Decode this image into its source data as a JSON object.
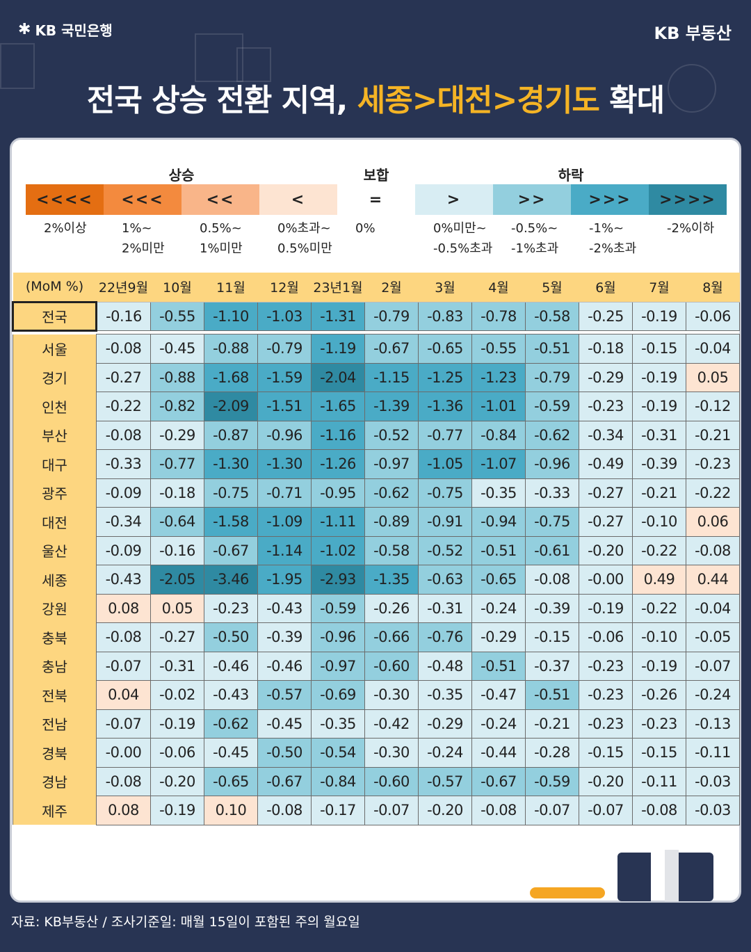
{
  "brand": {
    "left_logo": "KB 국민은행",
    "right_logo": "KB 부동산"
  },
  "title": {
    "part1": "전국 상승 전환 지역, ",
    "highlight": "세종>대전>경기도",
    "part2": " 확대"
  },
  "legend": {
    "group_up": "상승",
    "group_flat": "보합",
    "group_down": "하락",
    "items": [
      {
        "symbol": "<<<<",
        "desc": "2%이상",
        "color": "#e46e12"
      },
      {
        "symbol": "<<<",
        "desc": "1%~\n2%미만",
        "color": "#f38a3e"
      },
      {
        "symbol": "<<",
        "desc": "0.5%~\n1%미만",
        "color": "#f9b589"
      },
      {
        "symbol": "<",
        "desc": "0%초과~\n0.5%미만",
        "color": "#fde4d2"
      },
      {
        "symbol": "=",
        "desc": "0%",
        "color": "#ffffff"
      },
      {
        "symbol": ">",
        "desc": "0%미만~\n-0.5%초과",
        "color": "#d8edf3"
      },
      {
        "symbol": ">>",
        "desc": "-0.5%~\n-1%초과",
        "color": "#93cfde"
      },
      {
        "symbol": ">>>",
        "desc": "-1%~\n-2%초과",
        "color": "#4aabc6"
      },
      {
        "symbol": ">>>>",
        "desc": "-2%이하",
        "color": "#2f8aa2"
      }
    ]
  },
  "table": {
    "corner": "(MoM %)",
    "columns": [
      "22년9월",
      "10월",
      "11월",
      "12월",
      "23년1월",
      "2월",
      "3월",
      "4월",
      "5월",
      "6월",
      "7월",
      "8월"
    ],
    "rows": [
      {
        "region": "전국",
        "values": [
          "-0.16",
          "-0.55",
          "-1.10",
          "-1.03",
          "-1.31",
          "-0.79",
          "-0.83",
          "-0.78",
          "-0.58",
          "-0.25",
          "-0.19",
          "-0.06"
        ]
      },
      {
        "region": "서울",
        "values": [
          "-0.08",
          "-0.45",
          "-0.88",
          "-0.79",
          "-1.19",
          "-0.67",
          "-0.65",
          "-0.55",
          "-0.51",
          "-0.18",
          "-0.15",
          "-0.04"
        ]
      },
      {
        "region": "경기",
        "values": [
          "-0.27",
          "-0.88",
          "-1.68",
          "-1.59",
          "-2.04",
          "-1.15",
          "-1.25",
          "-1.23",
          "-0.79",
          "-0.29",
          "-0.19",
          "0.05"
        ]
      },
      {
        "region": "인천",
        "values": [
          "-0.22",
          "-0.82",
          "-2.09",
          "-1.51",
          "-1.65",
          "-1.39",
          "-1.36",
          "-1.01",
          "-0.59",
          "-0.23",
          "-0.19",
          "-0.12"
        ]
      },
      {
        "region": "부산",
        "values": [
          "-0.08",
          "-0.29",
          "-0.87",
          "-0.96",
          "-1.16",
          "-0.52",
          "-0.77",
          "-0.84",
          "-0.62",
          "-0.34",
          "-0.31",
          "-0.21"
        ]
      },
      {
        "region": "대구",
        "values": [
          "-0.33",
          "-0.77",
          "-1.30",
          "-1.30",
          "-1.26",
          "-0.97",
          "-1.05",
          "-1.07",
          "-0.96",
          "-0.49",
          "-0.39",
          "-0.23"
        ]
      },
      {
        "region": "광주",
        "values": [
          "-0.09",
          "-0.18",
          "-0.75",
          "-0.71",
          "-0.95",
          "-0.62",
          "-0.75",
          "-0.35",
          "-0.33",
          "-0.27",
          "-0.21",
          "-0.22"
        ]
      },
      {
        "region": "대전",
        "values": [
          "-0.34",
          "-0.64",
          "-1.58",
          "-1.09",
          "-1.11",
          "-0.89",
          "-0.91",
          "-0.94",
          "-0.75",
          "-0.27",
          "-0.10",
          "0.06"
        ]
      },
      {
        "region": "울산",
        "values": [
          "-0.09",
          "-0.16",
          "-0.67",
          "-1.14",
          "-1.02",
          "-0.58",
          "-0.52",
          "-0.51",
          "-0.61",
          "-0.20",
          "-0.22",
          "-0.08"
        ]
      },
      {
        "region": "세종",
        "values": [
          "-0.43",
          "-2.05",
          "-3.46",
          "-1.95",
          "-2.93",
          "-1.35",
          "-0.63",
          "-0.65",
          "-0.08",
          "-0.00",
          "0.49",
          "0.44"
        ]
      },
      {
        "region": "강원",
        "values": [
          "0.08",
          "0.05",
          "-0.23",
          "-0.43",
          "-0.59",
          "-0.26",
          "-0.31",
          "-0.24",
          "-0.39",
          "-0.19",
          "-0.22",
          "-0.04"
        ]
      },
      {
        "region": "충북",
        "values": [
          "-0.08",
          "-0.27",
          "-0.50",
          "-0.39",
          "-0.96",
          "-0.66",
          "-0.76",
          "-0.29",
          "-0.15",
          "-0.06",
          "-0.10",
          "-0.05"
        ]
      },
      {
        "region": "충남",
        "values": [
          "-0.07",
          "-0.31",
          "-0.46",
          "-0.46",
          "-0.97",
          "-0.60",
          "-0.48",
          "-0.51",
          "-0.37",
          "-0.23",
          "-0.19",
          "-0.07"
        ]
      },
      {
        "region": "전북",
        "values": [
          "0.04",
          "-0.02",
          "-0.43",
          "-0.57",
          "-0.69",
          "-0.30",
          "-0.35",
          "-0.47",
          "-0.51",
          "-0.23",
          "-0.26",
          "-0.24"
        ]
      },
      {
        "region": "전남",
        "values": [
          "-0.07",
          "-0.19",
          "-0.62",
          "-0.45",
          "-0.35",
          "-0.42",
          "-0.29",
          "-0.24",
          "-0.21",
          "-0.23",
          "-0.23",
          "-0.13"
        ]
      },
      {
        "region": "경북",
        "values": [
          "-0.00",
          "-0.06",
          "-0.45",
          "-0.50",
          "-0.54",
          "-0.30",
          "-0.24",
          "-0.44",
          "-0.28",
          "-0.15",
          "-0.15",
          "-0.11"
        ]
      },
      {
        "region": "경남",
        "values": [
          "-0.08",
          "-0.20",
          "-0.65",
          "-0.67",
          "-0.84",
          "-0.60",
          "-0.57",
          "-0.67",
          "-0.59",
          "-0.20",
          "-0.11",
          "-0.03"
        ]
      },
      {
        "region": "제주",
        "values": [
          "0.08",
          "-0.19",
          "0.10",
          "-0.08",
          "-0.17",
          "-0.07",
          "-0.20",
          "-0.08",
          "-0.07",
          "-0.07",
          "-0.08",
          "-0.03"
        ]
      }
    ]
  },
  "source": "자료: KB부동산 / 조사기준일: 매월 15일이 포함된 주의 월요일"
}
